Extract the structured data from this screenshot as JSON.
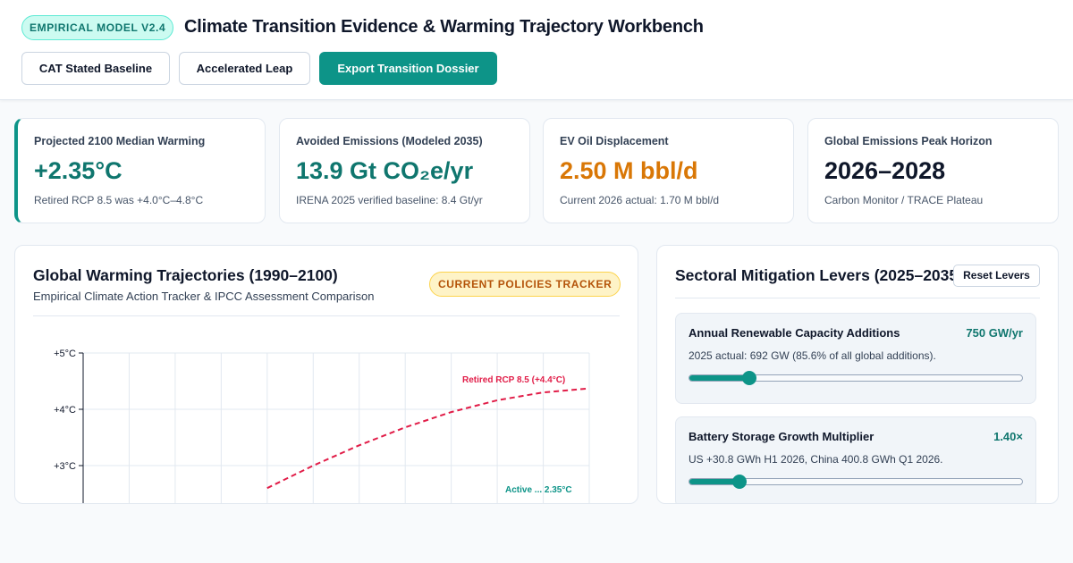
{
  "header": {
    "model_badge": "EMPIRICAL MODEL V2.4",
    "title": "Climate Transition Evidence & Warming Trajectory Workbench",
    "buttons": {
      "baseline": "CAT Stated Baseline",
      "leap": "Accelerated Leap",
      "export": "Export Transition Dossier"
    }
  },
  "kpis": [
    {
      "label": "Projected 2100 Median Warming",
      "value": "+2.35°C",
      "note": "Retired RCP 8.5 was +4.0°C–4.8°C",
      "color": "#0f766e"
    },
    {
      "label": "Avoided Emissions (Modeled 2035)",
      "value": "13.9 Gt CO₂e/yr",
      "note": "IRENA 2025 verified baseline: 8.4 Gt/yr",
      "color": "#0f766e"
    },
    {
      "label": "EV Oil Displacement",
      "value": "2.50 M bbl/d",
      "note": "Current 2026 actual: 1.70 M bbl/d",
      "color": "#d97706"
    },
    {
      "label": "Global Emissions Peak Horizon",
      "value": "2026–2028",
      "note": "Carbon Monitor / TRACE Plateau",
      "color": "#0f172a"
    }
  ],
  "chart_panel": {
    "title": "Global Warming Trajectories (1990–2100)",
    "subtitle": "Empirical Climate Action Tracker & IPCC Assessment Comparison",
    "badge": "CURRENT POLICIES TRACKER"
  },
  "chart_data": {
    "type": "line",
    "title": "Global Warming Trajectories (1990–2100)",
    "xlim": [
      1990,
      2100
    ],
    "ylim": [
      0,
      5
    ],
    "y_ticks": [
      {
        "value": 5,
        "label": "+5°C"
      },
      {
        "value": 4,
        "label": "+4°C"
      },
      {
        "value": 3,
        "label": "+3°C"
      }
    ],
    "grid": true,
    "series": [
      {
        "name": "Retired RCP 8.5 (+4.4°C)",
        "style": "dashed",
        "color": "#e11d48",
        "x": [
          2030,
          2040,
          2050,
          2060,
          2070,
          2080,
          2090,
          2100
        ],
        "y": [
          2.6,
          3.0,
          3.36,
          3.68,
          3.95,
          4.16,
          4.3,
          4.37
        ]
      },
      {
        "name": "Active ... 2.35°C",
        "style": "solid",
        "color": "#0d9488",
        "x": [
          2090,
          2100
        ],
        "y": [
          2.35,
          2.35
        ]
      }
    ]
  },
  "levers_panel": {
    "title": "Sectoral Mitigation Levers (2025–2035)",
    "reset_label": "Reset Levers",
    "items": [
      {
        "name": "Annual Renewable Capacity Additions",
        "value": "750 GW/yr",
        "note": "2025 actual: 692 GW (85.6% of all global additions).",
        "level": 0.18
      },
      {
        "name": "Battery Storage Growth Multiplier",
        "value": "1.40×",
        "note": "US +30.8 GWh H1 2026, China 400.8 GWh Q1 2026.",
        "level": 0.15
      }
    ]
  }
}
